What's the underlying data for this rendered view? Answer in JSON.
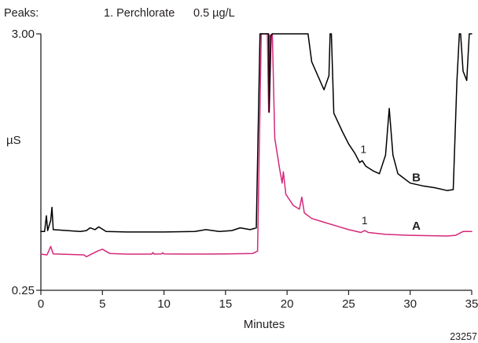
{
  "header": {
    "peaks_label": "Peaks:",
    "peak_entry": "1. Perchlorate",
    "peak_amount": "0.5 µg/L"
  },
  "figure_id": "23257",
  "colors": {
    "trace_a": "#d6287a",
    "trace_b": "#000000",
    "axis": "#231f20"
  },
  "chart_data": {
    "type": "line",
    "xlabel": "Minutes",
    "ylabel": "µS",
    "xlim": [
      0,
      35
    ],
    "ylim": [
      0.25,
      3.0
    ],
    "y_scale": "linear",
    "grid": false,
    "x_ticks": [
      0,
      5,
      10,
      15,
      20,
      25,
      30,
      35
    ],
    "x_tick_labels": [
      "0",
      "5",
      "10",
      "15",
      "20",
      "25",
      "30",
      "35"
    ],
    "y_ticks": [
      0.25,
      3.0
    ],
    "y_tick_labels": [
      "0.25",
      "3.00"
    ],
    "series": [
      {
        "name": "A",
        "color": "#d6287a",
        "points": [
          [
            0,
            0.638
          ],
          [
            0.5,
            0.63
          ],
          [
            0.8,
            0.72
          ],
          [
            1.0,
            0.64
          ],
          [
            3.5,
            0.63
          ],
          [
            3.7,
            0.61
          ],
          [
            4.6,
            0.67
          ],
          [
            5.0,
            0.69
          ],
          [
            5.6,
            0.645
          ],
          [
            7.0,
            0.638
          ],
          [
            9.0,
            0.638
          ],
          [
            9.1,
            0.655
          ],
          [
            9.2,
            0.638
          ],
          [
            9.8,
            0.64
          ],
          [
            9.9,
            0.652
          ],
          [
            10.0,
            0.64
          ],
          [
            12.0,
            0.638
          ],
          [
            15.0,
            0.64
          ],
          [
            17.2,
            0.645
          ],
          [
            17.6,
            0.67
          ],
          [
            17.9,
            3.0
          ],
          [
            18.4,
            3.0
          ],
          [
            18.5,
            2.16
          ],
          [
            18.6,
            2.98
          ],
          [
            18.8,
            3.0
          ],
          [
            19.0,
            1.88
          ],
          [
            19.4,
            1.55
          ],
          [
            19.6,
            1.4
          ],
          [
            19.7,
            1.52
          ],
          [
            19.9,
            1.28
          ],
          [
            20.5,
            1.16
          ],
          [
            21.0,
            1.12
          ],
          [
            21.2,
            1.25
          ],
          [
            21.4,
            1.08
          ],
          [
            22.0,
            1.02
          ],
          [
            23.0,
            0.98
          ],
          [
            24.0,
            0.94
          ],
          [
            25.0,
            0.9
          ],
          [
            26.0,
            0.87
          ],
          [
            26.3,
            0.89
          ],
          [
            26.6,
            0.87
          ],
          [
            28.0,
            0.85
          ],
          [
            30.0,
            0.84
          ],
          [
            33.0,
            0.832
          ],
          [
            33.7,
            0.84
          ],
          [
            34.3,
            0.88
          ],
          [
            35.0,
            0.88
          ]
        ]
      },
      {
        "name": "B",
        "color": "#000000",
        "points": [
          [
            0,
            0.88
          ],
          [
            0.3,
            0.88
          ],
          [
            0.45,
            1.05
          ],
          [
            0.55,
            0.89
          ],
          [
            0.8,
            1.0
          ],
          [
            0.9,
            1.14
          ],
          [
            1.0,
            0.9
          ],
          [
            3.2,
            0.88
          ],
          [
            3.7,
            0.89
          ],
          [
            4.0,
            0.92
          ],
          [
            4.4,
            0.9
          ],
          [
            4.7,
            0.93
          ],
          [
            5.3,
            0.88
          ],
          [
            7.0,
            0.875
          ],
          [
            10.0,
            0.875
          ],
          [
            12.5,
            0.88
          ],
          [
            13.4,
            0.9
          ],
          [
            14.5,
            0.88
          ],
          [
            15.5,
            0.89
          ],
          [
            16.2,
            0.92
          ],
          [
            17.0,
            0.9
          ],
          [
            17.5,
            0.92
          ],
          [
            17.8,
            3.0
          ],
          [
            18.5,
            3.0
          ],
          [
            18.55,
            2.16
          ],
          [
            18.7,
            2.98
          ],
          [
            18.8,
            3.0
          ],
          [
            21.7,
            3.0
          ],
          [
            22.0,
            2.7
          ],
          [
            23.0,
            2.4
          ],
          [
            23.4,
            2.55
          ],
          [
            23.5,
            3.0
          ],
          [
            23.6,
            3.0
          ],
          [
            23.8,
            2.15
          ],
          [
            24.5,
            1.95
          ],
          [
            25.0,
            1.82
          ],
          [
            25.5,
            1.72
          ],
          [
            25.9,
            1.62
          ],
          [
            26.1,
            1.64
          ],
          [
            26.4,
            1.58
          ],
          [
            27.0,
            1.53
          ],
          [
            27.5,
            1.5
          ],
          [
            28.0,
            1.7
          ],
          [
            28.3,
            2.2
          ],
          [
            28.6,
            1.7
          ],
          [
            29.0,
            1.5
          ],
          [
            30.0,
            1.4
          ],
          [
            31.0,
            1.37
          ],
          [
            32.0,
            1.35
          ],
          [
            33.0,
            1.32
          ],
          [
            33.5,
            1.33
          ],
          [
            33.8,
            2.5
          ],
          [
            34.0,
            3.0
          ],
          [
            34.1,
            3.0
          ],
          [
            34.3,
            2.6
          ],
          [
            34.6,
            2.5
          ],
          [
            34.8,
            3.0
          ],
          [
            35.0,
            3.0
          ]
        ]
      }
    ],
    "annotations": [
      {
        "text": "1",
        "x": 26.2,
        "y": 1.72,
        "series": "B"
      },
      {
        "text": "1",
        "x": 26.3,
        "y": 0.96,
        "series": "A"
      },
      {
        "text": "B",
        "x": 30.5,
        "y": 1.42
      },
      {
        "text": "A",
        "x": 30.5,
        "y": 0.9
      }
    ]
  }
}
